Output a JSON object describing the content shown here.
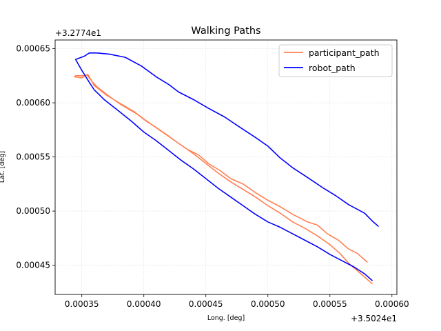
{
  "chart_data": {
    "type": "line",
    "title": "Walking Paths",
    "xlabel": "Long. [deg]",
    "ylabel": "Lat. [deg]",
    "x_offset_label": "+3.5024e1",
    "y_offset_label": "+3.2774e1",
    "xlim": [
      0.0003285,
      0.000604
    ],
    "ylim": [
      0.000423,
      0.000658
    ],
    "xticks": [
      0.00035,
      0.0004,
      0.00045,
      0.0005,
      0.00055,
      0.0006
    ],
    "xtick_labels": [
      "0.00035",
      "0.00040",
      "0.00045",
      "0.00050",
      "0.00055",
      "0.00060"
    ],
    "yticks": [
      0.00045,
      0.0005,
      0.00055,
      0.0006,
      0.00065
    ],
    "ytick_labels": [
      "0.00045",
      "0.00050",
      "0.00055",
      "0.00060",
      "0.00065"
    ],
    "grid": true,
    "legend_position": "top-right",
    "series": [
      {
        "name": "participant_path",
        "color": "#ff7f50",
        "x": [
          0.00058,
          0.000572,
          0.000565,
          0.000557,
          0.000548,
          0.00054,
          0.000532,
          0.00052,
          0.00051,
          0.0005,
          0.00049,
          0.00048,
          0.00047,
          0.000462,
          0.000452,
          0.000444,
          0.000435,
          0.000425,
          0.000418,
          0.000409,
          0.000402,
          0.000394,
          0.000382,
          0.000372,
          0.000362,
          0.000358,
          0.000354,
          0.00035,
          0.000344,
          0.000345,
          0.000352,
          0.000355,
          0.00036,
          0.00037,
          0.00038,
          0.000392,
          0.0004,
          0.00041,
          0.00042,
          0.00043,
          0.00044,
          0.00045,
          0.00046,
          0.00047,
          0.00048,
          0.00049,
          0.0005,
          0.00051,
          0.00052,
          0.00053,
          0.00054,
          0.00055,
          0.000558,
          0.000565,
          0.000572,
          0.000578,
          0.000584
        ],
        "y": [
          0.000453,
          0.000461,
          0.000465,
          0.000473,
          0.000479,
          0.000487,
          0.00049,
          0.000497,
          0.000504,
          0.00051,
          0.000517,
          0.000525,
          0.00053,
          0.000537,
          0.000544,
          0.000552,
          0.000557,
          0.000565,
          0.000571,
          0.000578,
          0.000583,
          0.00059,
          0.000598,
          0.000606,
          0.000615,
          0.00062,
          0.000626,
          0.000623,
          0.000624,
          0.000625,
          0.000625,
          0.000626,
          0.000616,
          0.000607,
          0.0006,
          0.000592,
          0.000585,
          0.000577,
          0.000569,
          0.000561,
          0.000553,
          0.000544,
          0.000535,
          0.000527,
          0.00052,
          0.000513,
          0.000505,
          0.000498,
          0.00049,
          0.000484,
          0.000477,
          0.000469,
          0.000461,
          0.000452,
          0.000445,
          0.000439,
          0.000433
        ]
      },
      {
        "name": "robot_path",
        "color": "#0000ff",
        "x": [
          0.000589,
          0.000584,
          0.000578,
          0.000565,
          0.000555,
          0.000545,
          0.000532,
          0.00052,
          0.00051,
          0.0005,
          0.00049,
          0.000478,
          0.000465,
          0.000452,
          0.00044,
          0.000428,
          0.00042,
          0.00041,
          0.000398,
          0.000385,
          0.000372,
          0.000362,
          0.000356,
          0.000352,
          0.000345,
          0.00035,
          0.000356,
          0.00036,
          0.000368,
          0.000378,
          0.00039,
          0.0004,
          0.00041,
          0.00042,
          0.00043,
          0.00044,
          0.00045,
          0.00046,
          0.00047,
          0.00048,
          0.00049,
          0.0005,
          0.00051,
          0.00052,
          0.00053,
          0.00054,
          0.00055,
          0.00056,
          0.00057,
          0.000578,
          0.000584
        ],
        "y": [
          0.000486,
          0.000491,
          0.000498,
          0.000506,
          0.000514,
          0.000521,
          0.000531,
          0.00054,
          0.000549,
          0.00056,
          0.000568,
          0.000577,
          0.000587,
          0.000595,
          0.000603,
          0.00061,
          0.000617,
          0.000624,
          0.000634,
          0.000642,
          0.000645,
          0.000646,
          0.000646,
          0.000643,
          0.00064,
          0.00063,
          0.000619,
          0.000612,
          0.000603,
          0.000594,
          0.000583,
          0.000573,
          0.000565,
          0.000556,
          0.000547,
          0.000539,
          0.00053,
          0.000521,
          0.000513,
          0.000505,
          0.000497,
          0.00049,
          0.000485,
          0.000479,
          0.000473,
          0.000467,
          0.00046,
          0.000454,
          0.000448,
          0.000442,
          0.000436
        ]
      }
    ]
  }
}
